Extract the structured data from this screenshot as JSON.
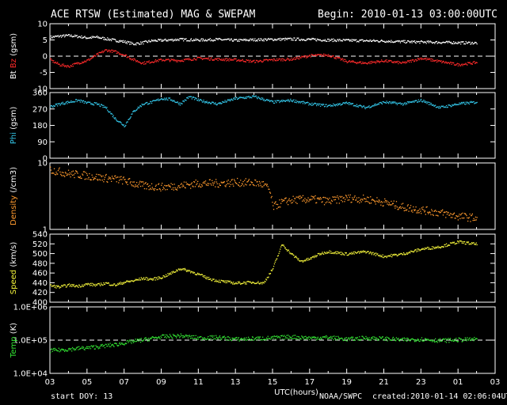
{
  "header": {
    "title": "ACE RTSW (Estimated) MAG & SWEPAM",
    "begin": "Begin: 2010-01-13 03:00:00UTC"
  },
  "footer": {
    "start_doy": "start DOY:  13",
    "source": "NOAA/SWPC",
    "created": "created:2010-01-14 02:06:04UTC"
  },
  "colors": {
    "background": "#000000",
    "bt": "#ffffff",
    "bz": "#ff2a2a",
    "phi": "#33c6e8",
    "density": "#ff9a2e",
    "speed": "#f2f23a",
    "temp": "#33e633"
  },
  "chart_data": {
    "type": "scatter",
    "shared_x": {
      "label": "UTC(hours)",
      "range": [
        3,
        27
      ],
      "ticks": [
        "03",
        "05",
        "07",
        "09",
        "11",
        "13",
        "15",
        "17",
        "19",
        "21",
        "23",
        "01",
        "03"
      ]
    },
    "panels": [
      {
        "id": "mag",
        "ylabel_parts": [
          {
            "text": "Bt",
            "color": "#ffffff"
          },
          {
            "text": " ",
            "color": "#ffffff"
          },
          {
            "text": "Bz",
            "color": "#ff2a2a"
          },
          {
            "text": " (gsm)",
            "color": "#ffffff"
          }
        ],
        "scale": "linear",
        "ylim": [
          -10,
          10
        ],
        "ytick_values": [
          -10,
          -5,
          0,
          5,
          10
        ],
        "ytick_labels": [
          "-10",
          "-5",
          "0",
          "5",
          "10"
        ],
        "reference_line": 0,
        "series": [
          {
            "name": "Bt",
            "color": "#ffffff",
            "x": [
              3,
              3.5,
              4,
              4.5,
              5,
              5.5,
              6,
              6.5,
              7,
              7.5,
              8,
              8.5,
              9,
              10,
              11,
              12,
              13,
              14,
              15,
              16,
              17,
              18,
              19,
              20,
              21,
              22,
              23,
              24,
              25,
              26
            ],
            "y": [
              6,
              6.3,
              6.5,
              6.2,
              5.8,
              6,
              5.5,
              5,
              4.6,
              3.9,
              4.3,
              4.9,
              5,
              5.3,
              5.1,
              5.3,
              5,
              5.2,
              5.3,
              5.4,
              5.3,
              5.1,
              5,
              4.9,
              4.8,
              4.6,
              4.5,
              4.4,
              4.3,
              4.2
            ]
          },
          {
            "name": "Bz",
            "color": "#ff2a2a",
            "x": [
              3,
              3.5,
              4,
              4.5,
              5,
              5.5,
              6,
              6.5,
              7,
              7.5,
              8,
              8.5,
              9,
              10,
              11,
              12,
              13,
              14,
              15,
              16,
              17,
              18,
              19,
              20,
              21,
              22,
              23,
              24,
              25,
              26
            ],
            "y": [
              -1,
              -2.5,
              -3,
              -2,
              -1.2,
              0.5,
              2,
              1.5,
              0.5,
              -1,
              -2,
              -1.5,
              -1,
              -1.2,
              -0.5,
              -0.8,
              -1,
              -1.5,
              -1,
              -0.8,
              0.3,
              0.5,
              -1.5,
              -2,
              -1.3,
              -2,
              -0.5,
              -1.5,
              -2.5,
              -1.8
            ]
          }
        ]
      },
      {
        "id": "phi",
        "ylabel_parts": [
          {
            "text": "Phi",
            "color": "#33c6e8"
          },
          {
            "text": " (gsm)",
            "color": "#ffffff"
          }
        ],
        "scale": "linear",
        "ylim": [
          0,
          360
        ],
        "ytick_values": [
          0,
          90,
          180,
          270,
          360
        ],
        "ytick_labels": [
          "0",
          "90",
          "180",
          "270",
          "360"
        ],
        "series": [
          {
            "name": "Phi",
            "color": "#33c6e8",
            "x": [
              3,
              3.5,
              4,
              4.5,
              5,
              5.5,
              6,
              6.5,
              7,
              7.5,
              8,
              8.5,
              9,
              9.5,
              10,
              10.5,
              11,
              11.5,
              12,
              13,
              14,
              15,
              16,
              17,
              18,
              19,
              20,
              21,
              22,
              23,
              24,
              25,
              26
            ],
            "y": [
              285,
              300,
              310,
              320,
              305,
              300,
              280,
              220,
              180,
              260,
              300,
              310,
              330,
              325,
              300,
              340,
              320,
              310,
              300,
              330,
              340,
              310,
              320,
              300,
              290,
              305,
              280,
              310,
              300,
              320,
              280,
              300,
              310
            ]
          }
        ]
      },
      {
        "id": "density",
        "ylabel_parts": [
          {
            "text": "Density",
            "color": "#ff9a2e"
          },
          {
            "text": " (/cm3)",
            "color": "#ffffff"
          }
        ],
        "scale": "log",
        "ylim": [
          1,
          10
        ],
        "ytick_values": [
          1,
          10
        ],
        "ytick_labels": [
          "1",
          "10"
        ],
        "series": [
          {
            "name": "Density",
            "color": "#ff9a2e",
            "x": [
              3,
              3.5,
              4,
              4.5,
              5,
              5.5,
              6,
              6.5,
              7,
              7.5,
              8,
              8.5,
              9,
              10,
              11,
              12,
              13,
              14,
              14.5,
              14.8,
              15,
              15.5,
              16,
              17,
              18,
              19,
              20,
              21,
              22,
              23,
              24,
              25,
              26
            ],
            "y": [
              8,
              7.5,
              7,
              6.8,
              6.5,
              6.2,
              6,
              5.8,
              5.5,
              5,
              4.6,
              4.5,
              4.4,
              4.6,
              5,
              5,
              5.2,
              5.1,
              4.8,
              4,
              2.2,
              2.6,
              2.8,
              2.9,
              2.7,
              3,
              2.9,
              2.6,
              2.2,
              2,
              1.8,
              1.6,
              1.5
            ]
          }
        ]
      },
      {
        "id": "speed",
        "ylabel_parts": [
          {
            "text": "Speed",
            "color": "#f2f23a"
          },
          {
            "text": " (km/s)",
            "color": "#ffffff"
          }
        ],
        "scale": "linear",
        "ylim": [
          400,
          540
        ],
        "ytick_values": [
          400,
          420,
          440,
          460,
          480,
          500,
          520,
          540
        ],
        "ytick_labels": [
          "400",
          "420",
          "440",
          "460",
          "480",
          "500",
          "520",
          "540"
        ],
        "series": [
          {
            "name": "Speed",
            "color": "#f2f23a",
            "x": [
              3,
              3.5,
              4,
              4.5,
              5,
              5.5,
              6,
              6.5,
              7,
              7.5,
              8,
              8.5,
              9,
              9.5,
              10,
              10.5,
              11,
              11.5,
              12,
              13,
              14,
              14.5,
              15,
              15.5,
              16,
              16.5,
              17,
              17.5,
              18,
              19,
              20,
              21,
              22,
              23,
              24,
              25,
              26
            ],
            "y": [
              435,
              432,
              436,
              434,
              438,
              436,
              440,
              436,
              442,
              445,
              450,
              448,
              452,
              460,
              470,
              465,
              458,
              450,
              445,
              440,
              442,
              440,
              470,
              520,
              500,
              485,
              490,
              500,
              505,
              500,
              505,
              495,
              500,
              510,
              515,
              525,
              520
            ]
          }
        ]
      },
      {
        "id": "temp",
        "ylabel_parts": [
          {
            "text": "Temp",
            "color": "#33e633"
          },
          {
            "text": " (K)",
            "color": "#ffffff"
          }
        ],
        "scale": "log",
        "ylim": [
          10000,
          1000000
        ],
        "ytick_values": [
          10000,
          100000,
          1000000
        ],
        "ytick_labels": [
          "1.0E+04",
          "1.0E+05",
          "1.0E+06"
        ],
        "reference_line": 100000,
        "series": [
          {
            "name": "Temp",
            "color": "#33e633",
            "x": [
              3,
              3.5,
              4,
              4.5,
              5,
              5.5,
              6,
              6.5,
              7,
              7.5,
              8,
              9,
              10,
              11,
              12,
              13,
              14,
              15,
              16,
              17,
              18,
              19,
              20,
              21,
              22,
              23,
              24,
              25,
              26
            ],
            "y": [
              50000,
              52000,
              55000,
              58000,
              60000,
              65000,
              70000,
              75000,
              85000,
              95000,
              105000,
              130000,
              140000,
              120000,
              125000,
              110000,
              115000,
              120000,
              130000,
              120000,
              125000,
              110000,
              120000,
              115000,
              105000,
              110000,
              100000,
              105000,
              110000
            ]
          }
        ]
      }
    ]
  }
}
